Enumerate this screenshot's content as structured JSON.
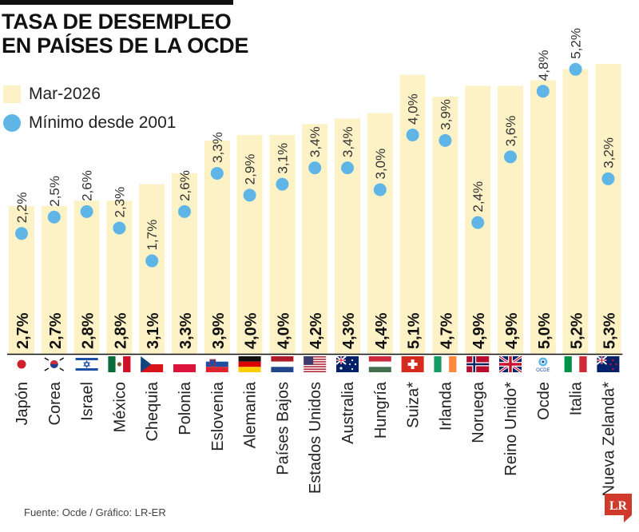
{
  "header": {
    "title_line1": "TASA DE DESEMPLEO",
    "title_line2": "EN PAÍSES DE LA OCDE"
  },
  "legend": {
    "bar_label": "Mar-2026",
    "dot_label": "Mínimo desde 2001"
  },
  "colors": {
    "bar": "#fdf2c6",
    "dot": "#5fb6e6",
    "text": "#111111"
  },
  "footer": {
    "source": "Fuente: Ocde / Gráfico: LR-ER",
    "logo_text": "LR"
  },
  "chart_data": {
    "type": "bar",
    "categories": [
      "Japón",
      "Corea",
      "Israel",
      "México",
      "Chequia",
      "Polonia",
      "Eslovenia",
      "Alemania",
      "Países Bajos",
      "Estados Unidos",
      "Australia",
      "Hungría",
      "Suiza*",
      "Irlanda",
      "Noruega",
      "Reino Unido*",
      "Ocde",
      "Italia",
      "Nueva Zelanda*"
    ],
    "series": [
      {
        "name": "Mar-2026",
        "type": "bar",
        "values": [
          2.7,
          2.7,
          2.8,
          2.8,
          3.1,
          3.3,
          3.9,
          4.0,
          4.0,
          4.2,
          4.3,
          4.4,
          5.1,
          4.7,
          4.9,
          4.9,
          5.0,
          5.2,
          5.3
        ],
        "labels": [
          "2,7%",
          "2,7%",
          "2,8%",
          "2,8%",
          "3,1%",
          "3,3%",
          "3,9%",
          "4,0%",
          "4,0%",
          "4,2%",
          "4,3%",
          "4,4%",
          "5,1%",
          "4,7%",
          "4,9%",
          "4,9%",
          "5,0%",
          "5,2%",
          "5,3%"
        ]
      },
      {
        "name": "Mínimo desde 2001",
        "type": "scatter",
        "values": [
          2.2,
          2.5,
          2.6,
          2.3,
          1.7,
          2.6,
          3.3,
          2.9,
          3.1,
          3.4,
          3.4,
          3.0,
          4.0,
          3.9,
          2.4,
          3.6,
          4.8,
          5.2,
          3.2
        ],
        "labels": [
          "2,2%",
          "2,5%",
          "2,6%",
          "2,3%",
          "1,7%",
          "2,6%",
          "3,3%",
          "2,9%",
          "3,1%",
          "3,4%",
          "3,4%",
          "3,0%",
          "4,0%",
          "3,9%",
          "2,4%",
          "3,6%",
          "4,8%",
          "5,2%",
          "3,2%"
        ]
      }
    ],
    "flags": [
      "japan-flag-icon",
      "korea-flag-icon",
      "israel-flag-icon",
      "mexico-flag-icon",
      "czechia-flag-icon",
      "poland-flag-icon",
      "slovenia-flag-icon",
      "germany-flag-icon",
      "netherlands-flag-icon",
      "usa-flag-icon",
      "australia-flag-icon",
      "hungary-flag-icon",
      "switzerland-flag-icon",
      "ireland-flag-icon",
      "norway-flag-icon",
      "uk-flag-icon",
      "oecd-logo-icon",
      "italy-flag-icon",
      "new-zealand-flag-icon"
    ],
    "oecd_logo_text": "OCDE",
    "ylim": [
      0,
      5.5
    ],
    "grid": false,
    "legend_position": "top-left"
  }
}
